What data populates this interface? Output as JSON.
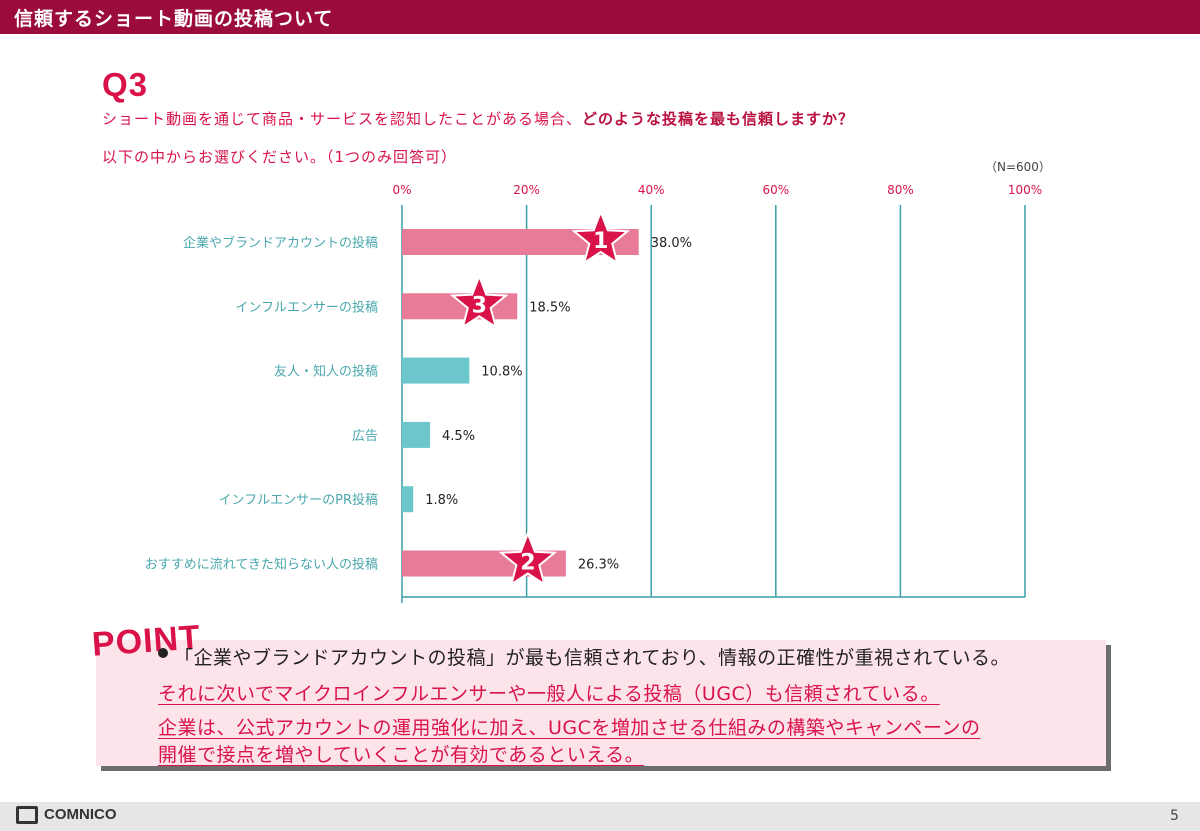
{
  "header": {
    "title": "信頼するショート動画の投稿ついて"
  },
  "question": {
    "label": "Q3",
    "text_normal": "ショート動画を通じて商品・サービスを認知したことがある場合、",
    "text_strong": "どのような投稿を最も信頼しますか？",
    "instruction": "以下の中からお選びください。（1つのみ回答可）",
    "sample": "（N=600）"
  },
  "chart_data": {
    "type": "bar",
    "orientation": "horizontal",
    "categories": [
      "企業やブランドアカウントの投稿",
      "インフルエンサーの投稿",
      "友人・知人の投稿",
      "広告",
      "インフルエンサーのPR投稿",
      "おすすめに流れてきた知らない人の投稿"
    ],
    "values": [
      38.0,
      18.5,
      10.8,
      4.5,
      1.8,
      26.3
    ],
    "value_labels": [
      "38.0%",
      "18.5%",
      "10.8%",
      "4.5%",
      "1.8%",
      "26.3%"
    ],
    "ranks": [
      1,
      3,
      null,
      null,
      null,
      2
    ],
    "xlim": [
      0,
      100
    ],
    "ticks": [
      0,
      20,
      40,
      60,
      80,
      100
    ],
    "tick_labels": [
      "0%",
      "20%",
      "40%",
      "60%",
      "80%",
      "100%"
    ],
    "colors": {
      "highlight": "#e87b97",
      "normal": "#6cc7cd",
      "star": "#d9134a",
      "grid": "#3a9ea5"
    }
  },
  "point": {
    "logo": "POINT",
    "line1": "「企業やブランドアカウントの投稿」が最も信頼されており、情報の正確性が重視されている。",
    "line2": "それに次いでマイクロインフルエンサーや一般人による投稿（UGC）も信頼されている。",
    "line3": "企業は、公式アカウントの運用強化に加え、UGCを増加させる仕組みの構築やキャンペーンの",
    "line4": "開催で接点を増やしていくことが有効であるといえる。"
  },
  "footer": {
    "brand": "COMNICO",
    "page": "5"
  }
}
